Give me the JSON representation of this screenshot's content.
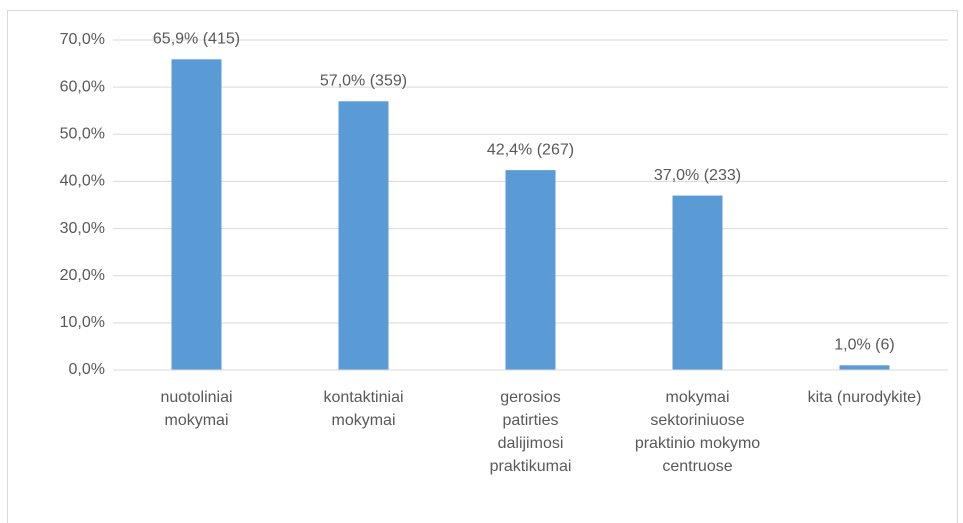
{
  "chart_data": {
    "type": "bar",
    "categories": [
      "nuotoliniai mokymai",
      "kontaktiniai mokymai",
      "gerosios patirties dalijimosi praktikumai",
      "mokymai sektoriniuose praktinio mokymo centruose",
      "kita (nurodykite)"
    ],
    "values": [
      65.9,
      57.0,
      42.4,
      37.0,
      1.0
    ],
    "value_labels": [
      "65,9% (415)",
      "57,0% (359)",
      "42,4% (267)",
      "37,0% (233)",
      "1,0% (6)"
    ],
    "color": "#5b9bd5",
    "ylim": [
      0,
      70
    ],
    "yticks": [
      {
        "value": 0,
        "label": "0,0%"
      },
      {
        "value": 10,
        "label": "10,0%"
      },
      {
        "value": 20,
        "label": "20,0%"
      },
      {
        "value": 30,
        "label": "30,0%"
      },
      {
        "value": 40,
        "label": "40,0%"
      },
      {
        "value": 50,
        "label": "50,0%"
      },
      {
        "value": 60,
        "label": "60,0%"
      },
      {
        "value": 70,
        "label": "70,0%"
      }
    ],
    "grid": true
  }
}
